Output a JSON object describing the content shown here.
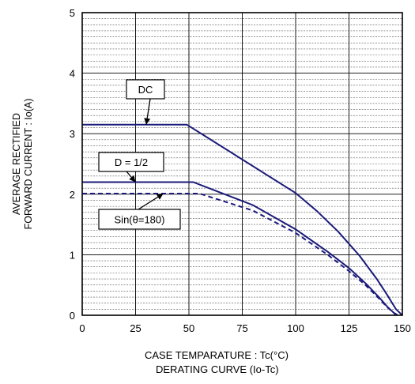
{
  "chart_data": {
    "type": "line",
    "title": "DERATING CURVE (Io-Tc)",
    "xlabel": "CASE TEMPARATURE : Tc(°C)",
    "ylabel_lines": [
      "AVERAGE RECTIFIED",
      "FORWARD CURRENT : Io(A)"
    ],
    "xlim": [
      0,
      150
    ],
    "ylim": [
      0,
      5
    ],
    "x_ticks": [
      0,
      25,
      50,
      75,
      100,
      125,
      150
    ],
    "y_ticks": [
      0,
      1,
      2,
      3,
      4,
      5
    ],
    "grid": "horizontal",
    "series": [
      {
        "name": "DC",
        "style": "solid",
        "color": "#1a1a7a",
        "x": [
          0,
          49,
          100,
          110,
          120,
          130,
          138,
          143,
          147,
          150
        ],
        "y": [
          3.15,
          3.15,
          2.02,
          1.72,
          1.38,
          0.98,
          0.6,
          0.33,
          0.1,
          0
        ]
      },
      {
        "name": "D = 1/2",
        "style": "solid",
        "color": "#1a1a7a",
        "x": [
          0,
          52,
          80,
          100,
          115,
          125,
          133,
          139,
          143,
          146,
          147
        ],
        "y": [
          2.2,
          2.2,
          1.82,
          1.42,
          1.05,
          0.78,
          0.52,
          0.3,
          0.14,
          0.04,
          0
        ]
      },
      {
        "name": "Sin(θ=180)",
        "style": "dashed",
        "color": "#1a1a7a",
        "x": [
          0,
          55,
          80,
          100,
          115,
          125,
          133,
          139,
          143,
          146,
          148
        ],
        "y": [
          2.01,
          2.01,
          1.73,
          1.36,
          1.0,
          0.73,
          0.49,
          0.28,
          0.13,
          0.04,
          0
        ]
      }
    ],
    "annotations": [
      {
        "text": "DC",
        "arrow_to": [
          30,
          3.15
        ]
      },
      {
        "text": "D = 1/2",
        "arrow_to": [
          25,
          2.2
        ]
      },
      {
        "text": "Sin(θ=180)",
        "arrow_to": [
          38,
          2.01
        ]
      }
    ]
  }
}
